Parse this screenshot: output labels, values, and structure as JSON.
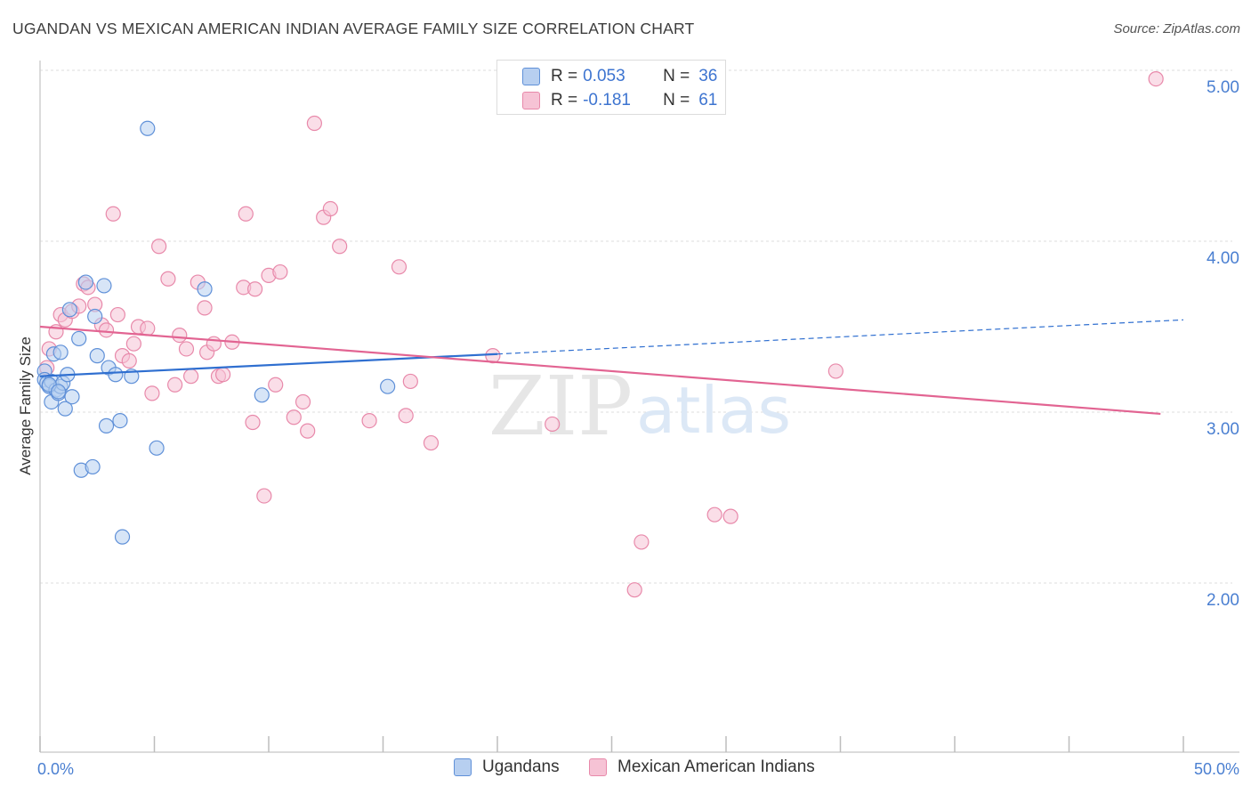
{
  "title": "UGANDAN VS MEXICAN AMERICAN INDIAN AVERAGE FAMILY SIZE CORRELATION CHART",
  "source": "Source: ZipAtlas.com",
  "watermark": {
    "zip": "ZIP",
    "atlas": "atlas"
  },
  "colors": {
    "blue_fill": "#b7cff0",
    "blue_stroke": "#5f90d8",
    "blue_line": "#2f6fd0",
    "pink_fill": "#f6c3d5",
    "pink_stroke": "#e889aa",
    "pink_line": "#e26492",
    "tick_text": "#4a7fd1",
    "grid": "#dddddd"
  },
  "legend_top": {
    "rows": [
      {
        "r_label": "R =",
        "r_value": "0.053",
        "n_label": "N =",
        "n_value": "36",
        "swatch": "blue"
      },
      {
        "r_label": "R =",
        "r_value": "-0.181",
        "n_label": "N =",
        "n_value": "61",
        "swatch": "pink"
      }
    ]
  },
  "legend_bottom": [
    {
      "label": "Ugandans",
      "swatch": "blue"
    },
    {
      "label": "Mexican American Indians",
      "swatch": "pink"
    }
  ],
  "chart_data": {
    "type": "scatter",
    "ylabel": "Average Family Size",
    "xlim": [
      0,
      50
    ],
    "ylim": [
      1.0,
      5.1
    ],
    "x_tick_labels": [
      "0.0%",
      "50.0%"
    ],
    "y_ticks": [
      2.0,
      3.0,
      4.0,
      5.0
    ],
    "y_tick_labels": [
      "2.00",
      "3.00",
      "4.00",
      "5.00"
    ],
    "grid": true,
    "series": [
      {
        "name": "Ugandans",
        "color": "blue",
        "points": [
          [
            0.2,
            3.24
          ],
          [
            0.2,
            3.19
          ],
          [
            0.3,
            3.17
          ],
          [
            0.4,
            3.15
          ],
          [
            0.5,
            3.18
          ],
          [
            0.5,
            3.06
          ],
          [
            0.6,
            3.34
          ],
          [
            0.7,
            3.13
          ],
          [
            0.8,
            3.11
          ],
          [
            0.9,
            3.15
          ],
          [
            0.9,
            3.35
          ],
          [
            1.0,
            3.17
          ],
          [
            1.1,
            3.02
          ],
          [
            1.2,
            3.22
          ],
          [
            1.3,
            3.6
          ],
          [
            1.4,
            3.09
          ],
          [
            1.7,
            3.43
          ],
          [
            1.8,
            2.66
          ],
          [
            2.0,
            3.76
          ],
          [
            2.3,
            2.68
          ],
          [
            2.4,
            3.56
          ],
          [
            2.5,
            3.33
          ],
          [
            2.8,
            3.74
          ],
          [
            2.9,
            2.92
          ],
          [
            3.0,
            3.26
          ],
          [
            3.3,
            3.22
          ],
          [
            3.5,
            2.95
          ],
          [
            3.6,
            2.27
          ],
          [
            4.0,
            3.21
          ],
          [
            4.7,
            4.66
          ],
          [
            5.1,
            2.79
          ],
          [
            7.2,
            3.72
          ],
          [
            9.7,
            3.1
          ],
          [
            15.2,
            3.15
          ],
          [
            0.4,
            3.16
          ],
          [
            0.8,
            3.12
          ]
        ],
        "trend": {
          "x": [
            0.0,
            20.0,
            50.0
          ],
          "y": [
            3.21,
            3.34,
            3.54
          ],
          "solid_to_x": 20.0
        }
      },
      {
        "name": "Mexican American Indians",
        "color": "pink",
        "points": [
          [
            0.3,
            3.26
          ],
          [
            0.4,
            3.37
          ],
          [
            0.7,
            3.47
          ],
          [
            0.9,
            3.57
          ],
          [
            1.1,
            3.54
          ],
          [
            1.4,
            3.59
          ],
          [
            1.7,
            3.62
          ],
          [
            1.9,
            3.75
          ],
          [
            2.1,
            3.73
          ],
          [
            2.4,
            3.63
          ],
          [
            2.7,
            3.51
          ],
          [
            2.9,
            3.48
          ],
          [
            3.2,
            4.16
          ],
          [
            3.4,
            3.57
          ],
          [
            3.6,
            3.33
          ],
          [
            3.9,
            3.3
          ],
          [
            4.1,
            3.4
          ],
          [
            4.3,
            3.5
          ],
          [
            4.7,
            3.49
          ],
          [
            4.9,
            3.11
          ],
          [
            5.2,
            3.97
          ],
          [
            5.6,
            3.78
          ],
          [
            5.9,
            3.16
          ],
          [
            6.1,
            3.45
          ],
          [
            6.4,
            3.37
          ],
          [
            6.6,
            3.21
          ],
          [
            6.9,
            3.76
          ],
          [
            7.2,
            3.61
          ],
          [
            7.3,
            3.35
          ],
          [
            7.6,
            3.4
          ],
          [
            7.8,
            3.21
          ],
          [
            8.0,
            3.22
          ],
          [
            8.4,
            3.41
          ],
          [
            8.9,
            3.73
          ],
          [
            9.0,
            4.16
          ],
          [
            9.3,
            2.94
          ],
          [
            9.4,
            3.72
          ],
          [
            9.8,
            2.51
          ],
          [
            10.0,
            3.8
          ],
          [
            10.3,
            3.16
          ],
          [
            10.5,
            3.82
          ],
          [
            11.1,
            2.97
          ],
          [
            11.5,
            3.06
          ],
          [
            11.7,
            2.89
          ],
          [
            12.0,
            4.69
          ],
          [
            12.4,
            4.14
          ],
          [
            12.7,
            4.19
          ],
          [
            13.1,
            3.97
          ],
          [
            14.4,
            2.95
          ],
          [
            15.7,
            3.85
          ],
          [
            16.0,
            2.98
          ],
          [
            16.2,
            3.18
          ],
          [
            17.1,
            2.82
          ],
          [
            19.8,
            3.33
          ],
          [
            22.4,
            2.93
          ],
          [
            26.0,
            1.96
          ],
          [
            26.3,
            2.24
          ],
          [
            29.5,
            2.4
          ],
          [
            30.2,
            2.39
          ],
          [
            34.8,
            3.24
          ],
          [
            48.8,
            4.95
          ]
        ],
        "trend": {
          "x": [
            0.0,
            49.0
          ],
          "y": [
            3.5,
            2.99
          ]
        }
      }
    ]
  }
}
